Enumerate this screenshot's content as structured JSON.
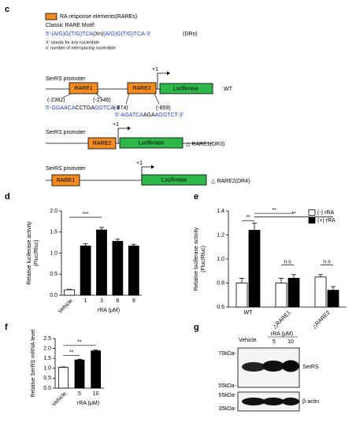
{
  "diagram": {
    "label": "c",
    "legend": "RA response elements(RAREs)",
    "motif_title": "Classic RARE Motif:",
    "motif": [
      "5'-(A/G)G(T/G)TCA",
      "(Xn)",
      "(A/G)G(T/G)TCA-3'"
    ],
    "motif_name": "(DRn)",
    "notes": [
      "X: stands for any nucleotide",
      "n: number of interspacing nucleotide"
    ],
    "constructs": [
      {
        "promoter": "SerRS promoter",
        "elements": [
          "RARE1",
          "RARE2"
        ],
        "start": "+1",
        "reporter": "Luciferase",
        "name": "WT"
      },
      {
        "promoter": "SerRS promoter",
        "elements": [
          "RARE2"
        ],
        "start": "+1",
        "reporter": "Luciferase",
        "name": "△ RARE1(DR3)"
      },
      {
        "promoter": "SerRS promoter",
        "elements": [
          "RARE1"
        ],
        "start": "+1",
        "reporter": "Luciferase",
        "name": "△ RARE2(DR4)"
      }
    ],
    "sites": [
      {
        "start": "(-2362)",
        "end": "(-2346)",
        "sequence": [
          "5'-GGAACA",
          "CCTGA",
          "GGTCA-3'"
        ]
      },
      {
        "start": "(-874)",
        "end": "(-859)",
        "sequence": [
          "5'-AGATCA",
          "AGA",
          "AGGTCT-3'"
        ]
      }
    ]
  },
  "chart_data": [
    {
      "type": "bar",
      "label": "d",
      "categories": [
        "Vehicle",
        "1",
        "3",
        "6",
        "9"
      ],
      "values": [
        0.13,
        1.17,
        1.55,
        1.28,
        1.17
      ],
      "errors": [
        0.01,
        0.05,
        0.06,
        0.05,
        0.04
      ],
      "colors": [
        "#ffffff",
        "#000000",
        "#000000",
        "#000000",
        "#000000"
      ],
      "ylim": [
        0,
        2
      ],
      "yticks": [
        {
          "value": 0,
          "label": "0.0"
        },
        0.5,
        {
          "value": 1,
          "label": "1.0"
        },
        1.5,
        {
          "value": 2,
          "label": "2.0"
        }
      ],
      "ylabel": [
        "Relative luciferase activity",
        "(Fluc/Rluc)"
      ],
      "xlabel": "rRA (μM)",
      "annotations": [
        "***"
      ]
    },
    {
      "type": "bar",
      "label": "e",
      "categories": [
        "△RARE1",
        "△RARE2"
      ],
      "series": [
        {
          "name": "(-) rRA",
          "color": "#ffffff",
          "values": [
            0.8,
            0.85
          ],
          "errors": [
            0.04,
            0.02
          ]
        },
        {
          "name": "(+) rRA",
          "color": "#000000",
          "values": [
            0.84,
            0.74
          ],
          "errors": [
            0.03,
            0.03
          ]
        }
      ],
      "ylim": [
        0.6,
        1.4
      ],
      "yticks": [
        0.6,
        0.8,
        {
          "value": 1,
          "label": "1.0"
        },
        1.2,
        1.4
      ],
      "ylabel": [
        "Relative luciferase activity",
        "(Fluc/Rluc)"
      ],
      "legend": "upper right",
      "annotations": [
        "**",
        "**",
        "**",
        "n.s",
        "n.s"
      ]
    },
    {
      "type": "bar",
      "label": "f",
      "categories": [
        "Vehicle",
        "5",
        "10"
      ],
      "values": [
        1.05,
        1.42,
        1.88
      ],
      "errors": [
        0.02,
        0.04,
        0.04
      ],
      "colors": [
        "#ffffff",
        "#000000",
        "#000000"
      ],
      "ylim": [
        0,
        2.5
      ],
      "yticks": [
        {
          "value": 0,
          "label": "0.0"
        },
        0.5,
        {
          "value": 1,
          "label": "1.0"
        },
        1.5,
        {
          "value": 2,
          "label": "2.0"
        },
        2.5
      ],
      "ylabel": [
        "Relative SerRS mRNA level"
      ],
      "xlabel": "rRA (μM)",
      "annotations": [
        "**",
        "**"
      ]
    }
  ],
  "blot": {
    "label": "g",
    "conditions": [
      "Vehicle"
    ],
    "treatment": "rRA (μM)",
    "doses": [
      "5",
      "10"
    ],
    "markers": [
      "70kDa-",
      "55kDa-",
      "55kDa-",
      "35kDa-"
    ],
    "proteins": [
      "SerRS",
      "β-actin"
    ]
  }
}
